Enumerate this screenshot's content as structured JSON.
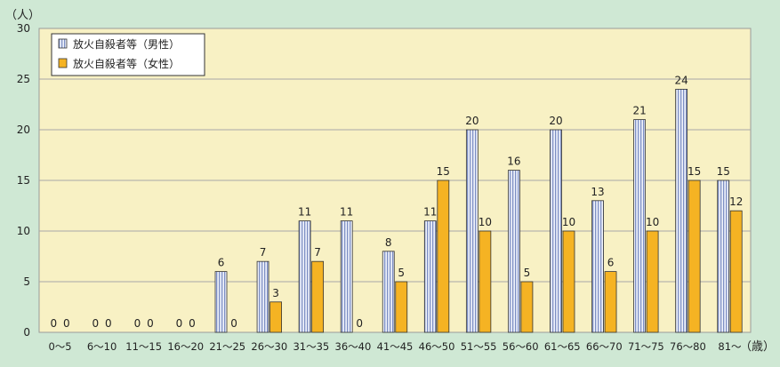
{
  "chart_data": {
    "type": "bar",
    "y_unit_label": "（人）",
    "x_unit_label": "（歳）",
    "ylim": [
      0,
      30
    ],
    "yticks": [
      0,
      5,
      10,
      15,
      20,
      25,
      30
    ],
    "grid": true,
    "legend_position": "top-left",
    "categories": [
      "0～5",
      "6～10",
      "11～15",
      "16～20",
      "21～25",
      "26～30",
      "31～35",
      "36～40",
      "41～45",
      "46～50",
      "51～55",
      "56～60",
      "61～65",
      "66～70",
      "71～75",
      "76～80",
      "81～"
    ],
    "series": [
      {
        "name": "放火自殺者等（男性）",
        "color": "#d9dff0",
        "pattern": "vertical-stripes",
        "values": [
          0,
          0,
          0,
          0,
          6,
          7,
          11,
          11,
          8,
          11,
          20,
          16,
          20,
          13,
          21,
          24,
          15
        ]
      },
      {
        "name": "放火自殺者等（女性）",
        "color": "#f5b323",
        "values": [
          0,
          0,
          0,
          0,
          0,
          3,
          7,
          0,
          5,
          15,
          10,
          5,
          10,
          6,
          10,
          15,
          12
        ]
      }
    ]
  }
}
